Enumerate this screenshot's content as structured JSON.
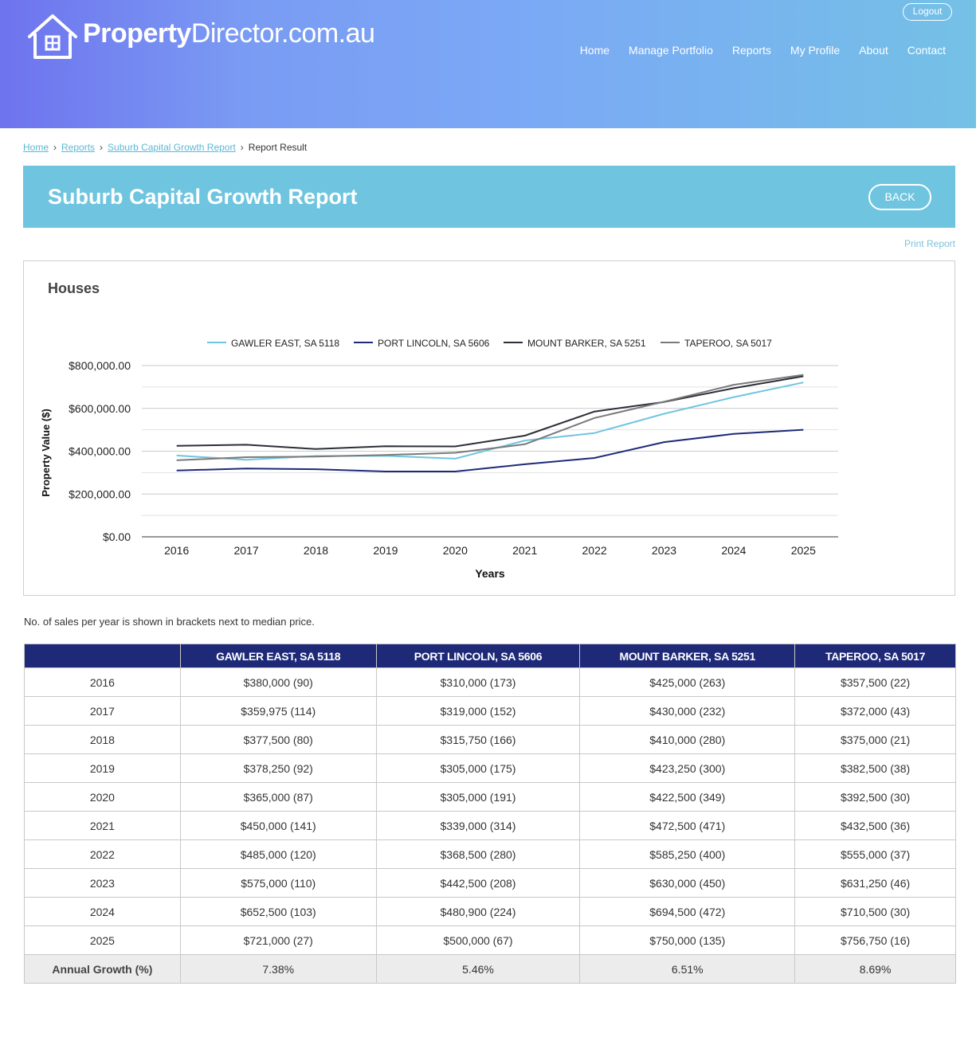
{
  "site": {
    "logo_bold": "Property",
    "logo_light": "Director.com.au"
  },
  "header": {
    "logout": "Logout",
    "nav": [
      "Home",
      "Manage Portfolio",
      "Reports",
      "My Profile",
      "About",
      "Contact"
    ]
  },
  "breadcrumb": {
    "home": "Home",
    "reports": "Reports",
    "report": "Suburb Capital Growth Report",
    "current": "Report Result"
  },
  "page": {
    "title": "Suburb Capital Growth Report",
    "back": "BACK",
    "print": "Print Report"
  },
  "chart_title": "Houses",
  "chart_data": {
    "type": "line",
    "title": "Houses",
    "xlabel": "Years",
    "ylabel": "Property Value ($)",
    "x": [
      2016,
      2017,
      2018,
      2019,
      2020,
      2021,
      2022,
      2023,
      2024,
      2025
    ],
    "ylim": [
      0,
      800000
    ],
    "yticks": [
      "$0.00",
      "$200,000.00",
      "$400,000.00",
      "$600,000.00",
      "$800,000.00"
    ],
    "grid": true,
    "legend_position": "top",
    "series": [
      {
        "name": "GAWLER EAST, SA 5118",
        "color": "#6fc5e0",
        "values": [
          380000,
          359975,
          377500,
          378250,
          365000,
          450000,
          485000,
          575000,
          652500,
          721000
        ]
      },
      {
        "name": "PORT LINCOLN, SA 5606",
        "color": "#1e2a78",
        "values": [
          310000,
          319000,
          315750,
          305000,
          305000,
          339000,
          368500,
          442500,
          480900,
          500000
        ]
      },
      {
        "name": "MOUNT BARKER, SA 5251",
        "color": "#2b2f38",
        "values": [
          425000,
          430000,
          410000,
          423250,
          422500,
          472500,
          585250,
          630000,
          694500,
          750000
        ]
      },
      {
        "name": "TAPEROO, SA 5017",
        "color": "#7a7a7a",
        "values": [
          357500,
          372000,
          375000,
          382500,
          392500,
          432500,
          555000,
          631250,
          710500,
          756750
        ]
      }
    ]
  },
  "note": "No. of sales per year is shown in brackets next to median price.",
  "table": {
    "headers": [
      "",
      "GAWLER EAST, SA 5118",
      "PORT LINCOLN, SA 5606",
      "MOUNT BARKER, SA 5251",
      "TAPEROO, SA 5017"
    ],
    "rows": [
      [
        "2016",
        "$380,000 (90)",
        "$310,000 (173)",
        "$425,000 (263)",
        "$357,500 (22)"
      ],
      [
        "2017",
        "$359,975 (114)",
        "$319,000 (152)",
        "$430,000 (232)",
        "$372,000 (43)"
      ],
      [
        "2018",
        "$377,500 (80)",
        "$315,750 (166)",
        "$410,000 (280)",
        "$375,000 (21)"
      ],
      [
        "2019",
        "$378,250 (92)",
        "$305,000 (175)",
        "$423,250 (300)",
        "$382,500 (38)"
      ],
      [
        "2020",
        "$365,000 (87)",
        "$305,000 (191)",
        "$422,500 (349)",
        "$392,500 (30)"
      ],
      [
        "2021",
        "$450,000 (141)",
        "$339,000 (314)",
        "$472,500 (471)",
        "$432,500 (36)"
      ],
      [
        "2022",
        "$485,000 (120)",
        "$368,500 (280)",
        "$585,250 (400)",
        "$555,000 (37)"
      ],
      [
        "2023",
        "$575,000 (110)",
        "$442,500 (208)",
        "$630,000 (450)",
        "$631,250 (46)"
      ],
      [
        "2024",
        "$652,500 (103)",
        "$480,900 (224)",
        "$694,500 (472)",
        "$710,500 (30)"
      ],
      [
        "2025",
        "$721,000 (27)",
        "$500,000 (67)",
        "$750,000 (135)",
        "$756,750 (16)"
      ]
    ],
    "growth": [
      "Annual Growth (%)",
      "7.38%",
      "5.46%",
      "6.51%",
      "8.69%"
    ]
  }
}
